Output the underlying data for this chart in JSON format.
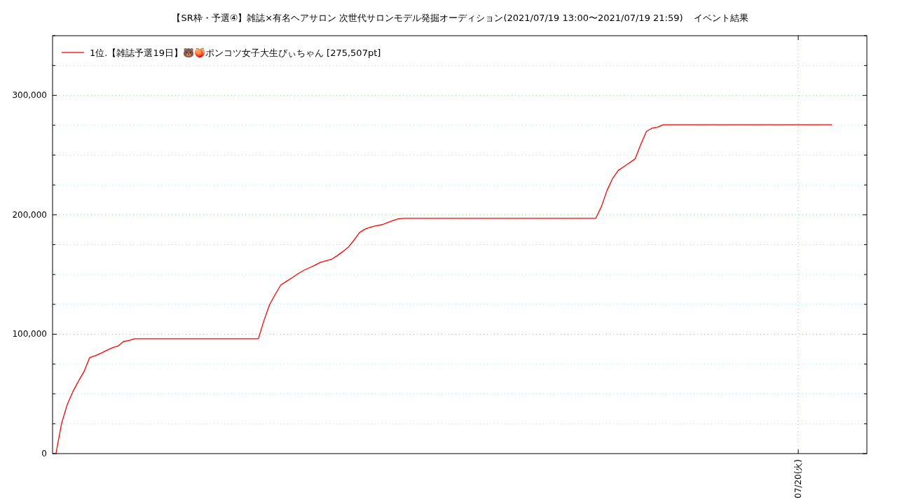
{
  "chart_data": {
    "type": "line",
    "title": "【SR枠・予選④】雑誌×有名ヘアサロン 次世代サロンモデル発掘オーディション(2021/07/19 13:00〜2021/07/19 21:59)",
    "subtitle": "イベント結果",
    "categories": [
      null,
      null,
      null,
      null,
      null,
      null,
      null,
      null,
      null,
      null,
      null,
      null,
      null,
      null,
      null,
      null,
      null,
      null,
      null,
      null,
      null,
      null,
      null,
      null,
      null,
      null,
      null,
      null,
      null,
      null,
      null,
      null,
      null,
      null,
      null,
      null,
      null,
      null,
      null,
      null,
      null,
      null,
      null,
      null,
      null,
      null,
      null,
      null,
      null,
      null,
      null,
      null,
      null,
      null,
      null,
      null,
      null,
      null,
      null,
      null,
      null,
      null,
      null,
      null,
      null,
      null,
      null,
      null,
      null,
      null,
      null,
      null,
      null,
      null,
      null,
      null,
      null,
      null,
      null,
      null,
      null,
      null,
      null,
      null,
      null,
      null,
      null,
      null,
      null,
      null,
      null,
      null,
      null,
      null,
      null,
      null,
      null,
      null,
      null,
      null,
      null,
      null,
      null,
      null,
      null,
      null,
      null,
      null,
      null,
      null,
      null,
      null,
      null,
      null,
      null,
      null,
      null,
      null,
      null,
      null,
      null,
      null,
      null,
      null,
      null,
      null,
      null,
      null,
      null,
      null,
      null,
      null,
      "07/20(火)",
      null,
      null,
      null,
      null,
      null,
      null
    ],
    "series": [
      {
        "name": "1位.【雑誌予選19日】🐻🍑ポンコツ女子大生ぴぃちゃん [275,507pt]",
        "color": "#ff0000",
        "values": [
          0,
          25200,
          41000,
          51800,
          60600,
          68800,
          80400,
          82000,
          84100,
          86400,
          88600,
          90000,
          93800,
          94700,
          96200,
          96200,
          96200,
          96200,
          96200,
          96200,
          96200,
          96200,
          96200,
          96200,
          96200,
          96200,
          96200,
          96200,
          96200,
          96200,
          96200,
          96200,
          96200,
          96200,
          96200,
          96200,
          96200,
          111600,
          124900,
          133400,
          141300,
          144300,
          147300,
          150500,
          153300,
          155500,
          157600,
          160100,
          161400,
          162700,
          165700,
          169200,
          172900,
          178800,
          185200,
          188100,
          189700,
          190900,
          191700,
          193600,
          195300,
          196800,
          197100,
          197100,
          197100,
          197100,
          197100,
          197100,
          197100,
          197100,
          197100,
          197100,
          197100,
          197100,
          197100,
          197100,
          197100,
          197100,
          197100,
          197100,
          197100,
          197100,
          197100,
          197100,
          197100,
          197100,
          197100,
          197100,
          197100,
          197100,
          197100,
          197100,
          197100,
          197100,
          197100,
          197100,
          197100,
          206900,
          220500,
          230500,
          237200,
          240400,
          243600,
          246900,
          259000,
          269800,
          272600,
          273400,
          275507,
          275507,
          275507,
          275507,
          275507,
          275507,
          275507,
          275507,
          275507,
          275507,
          275507,
          275507,
          275507,
          275507,
          275507,
          275507,
          275507,
          275507,
          275507,
          275507,
          275507,
          275507,
          275507,
          275507,
          275507,
          275507,
          275507,
          275507,
          275507,
          275507,
          275507
        ]
      }
    ],
    "ylim": [
      0,
      350000
    ],
    "yticks": [
      {
        "value": 0,
        "label": "0"
      },
      {
        "value": 25000,
        "label": null
      },
      {
        "value": 50000,
        "label": null
      },
      {
        "value": 75000,
        "label": null
      },
      {
        "value": 100000,
        "label": "100,000"
      },
      {
        "value": 125000,
        "label": null
      },
      {
        "value": 150000,
        "label": null
      },
      {
        "value": 175000,
        "label": null
      },
      {
        "value": 200000,
        "label": "200,000"
      },
      {
        "value": 225000,
        "label": null
      },
      {
        "value": 250000,
        "label": null
      },
      {
        "value": 275000,
        "label": null
      },
      {
        "value": 300000,
        "label": "300,000"
      },
      {
        "value": 325000,
        "label": null
      },
      {
        "value": 350000,
        "label": null
      }
    ],
    "grid": true,
    "legend": "top left",
    "line_style": "solid",
    "marker": "none"
  }
}
